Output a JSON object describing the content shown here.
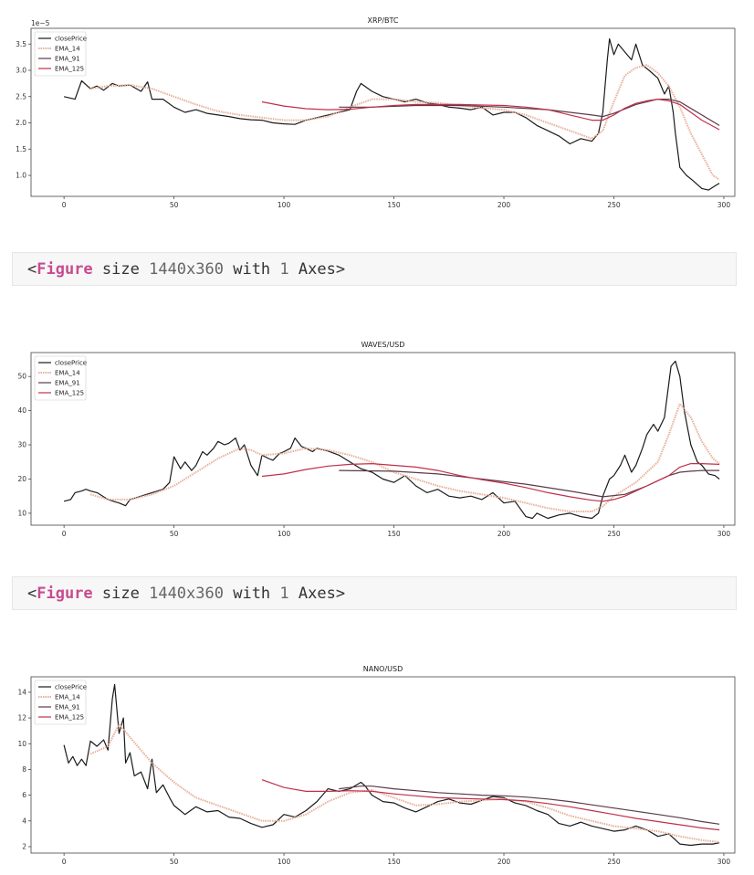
{
  "outputs": [
    {
      "prefix": "<",
      "keyword": "Figure",
      "middle": " size ",
      "size": "1440x360",
      "with": " with ",
      "count": "1",
      "suffix": " Axes>"
    },
    {
      "prefix": "<",
      "keyword": "Figure",
      "middle": " size ",
      "size": "1440x360",
      "with": " with ",
      "count": "1",
      "suffix": " Axes>"
    }
  ],
  "colors": {
    "closePrice": "#1a1a1a",
    "EMA_14": "#e8b09a",
    "EMA_91": "#5a3a48",
    "EMA_125": "#c0304a"
  },
  "chart_data": [
    {
      "type": "line",
      "title": "XRP/BTC",
      "offset_text": "1e−5",
      "xlim": [
        -15,
        305
      ],
      "ylim": [
        0.6,
        3.8
      ],
      "xticks": [
        0,
        50,
        100,
        150,
        200,
        250,
        300
      ],
      "yticks": [
        1.0,
        1.5,
        2.0,
        2.5,
        3.0,
        3.5
      ],
      "ytick_labels": [
        "1.0",
        "1.5",
        "2.0",
        "2.5",
        "3.0",
        "3.5"
      ],
      "legend": "top-left",
      "series": [
        {
          "name": "closePrice",
          "x": [
            0,
            5,
            8,
            12,
            15,
            18,
            22,
            25,
            30,
            35,
            38,
            40,
            45,
            50,
            55,
            60,
            65,
            70,
            75,
            80,
            85,
            90,
            95,
            100,
            105,
            110,
            115,
            120,
            125,
            130,
            133,
            135,
            140,
            145,
            150,
            155,
            160,
            165,
            170,
            175,
            180,
            185,
            190,
            195,
            200,
            205,
            210,
            215,
            220,
            225,
            230,
            235,
            240,
            243,
            245,
            247,
            248,
            250,
            252,
            255,
            258,
            260,
            263,
            266,
            270,
            273,
            275,
            277,
            278,
            280,
            283,
            286,
            290,
            293,
            296,
            298
          ],
          "y": [
            2.5,
            2.45,
            2.8,
            2.65,
            2.7,
            2.62,
            2.75,
            2.7,
            2.72,
            2.6,
            2.78,
            2.45,
            2.45,
            2.3,
            2.2,
            2.25,
            2.18,
            2.15,
            2.12,
            2.08,
            2.06,
            2.05,
            2.0,
            1.98,
            1.97,
            2.05,
            2.1,
            2.15,
            2.2,
            2.25,
            2.6,
            2.75,
            2.6,
            2.5,
            2.45,
            2.4,
            2.45,
            2.38,
            2.35,
            2.3,
            2.28,
            2.25,
            2.3,
            2.15,
            2.2,
            2.2,
            2.1,
            1.95,
            1.85,
            1.75,
            1.6,
            1.7,
            1.65,
            1.8,
            2.2,
            3.2,
            3.6,
            3.3,
            3.5,
            3.35,
            3.2,
            3.5,
            3.1,
            3.0,
            2.85,
            2.55,
            2.7,
            2.2,
            1.8,
            1.15,
            1.0,
            0.9,
            0.75,
            0.72,
            0.8,
            0.85
          ]
        },
        {
          "name": "EMA_14",
          "x": [
            12,
            20,
            30,
            40,
            50,
            60,
            70,
            80,
            90,
            100,
            110,
            120,
            130,
            140,
            150,
            160,
            170,
            180,
            190,
            200,
            210,
            220,
            230,
            240,
            245,
            250,
            255,
            260,
            265,
            270,
            275,
            280,
            285,
            290,
            295,
            298
          ],
          "y": [
            2.65,
            2.7,
            2.72,
            2.65,
            2.5,
            2.35,
            2.22,
            2.15,
            2.1,
            2.05,
            2.05,
            2.12,
            2.3,
            2.45,
            2.45,
            2.4,
            2.38,
            2.33,
            2.28,
            2.25,
            2.15,
            2.0,
            1.85,
            1.7,
            1.85,
            2.4,
            2.9,
            3.05,
            3.1,
            2.95,
            2.7,
            2.3,
            1.8,
            1.4,
            1.0,
            0.92
          ]
        },
        {
          "name": "EMA_91",
          "x": [
            125,
            140,
            160,
            180,
            200,
            220,
            240,
            245,
            250,
            260,
            270,
            275,
            280,
            290,
            298
          ],
          "y": [
            2.3,
            2.3,
            2.33,
            2.33,
            2.3,
            2.25,
            2.15,
            2.12,
            2.18,
            2.35,
            2.45,
            2.45,
            2.4,
            2.15,
            1.95
          ]
        },
        {
          "name": "EMA_125",
          "x": [
            90,
            100,
            110,
            120,
            130,
            140,
            150,
            160,
            170,
            180,
            190,
            200,
            210,
            220,
            230,
            240,
            245,
            250,
            255,
            260,
            265,
            270,
            275,
            280,
            285,
            290,
            298
          ],
          "y": [
            2.4,
            2.32,
            2.27,
            2.25,
            2.26,
            2.3,
            2.33,
            2.35,
            2.35,
            2.35,
            2.34,
            2.33,
            2.3,
            2.25,
            2.15,
            2.05,
            2.05,
            2.15,
            2.28,
            2.37,
            2.42,
            2.45,
            2.42,
            2.35,
            2.2,
            2.05,
            1.87
          ]
        }
      ]
    },
    {
      "type": "line",
      "title": "WAVES/USD",
      "offset_text": "",
      "xlim": [
        -15,
        305
      ],
      "ylim": [
        6.5,
        57
      ],
      "xticks": [
        0,
        50,
        100,
        150,
        200,
        250,
        300
      ],
      "yticks": [
        10,
        20,
        30,
        40,
        50
      ],
      "ytick_labels": [
        "10",
        "20",
        "30",
        "40",
        "50"
      ],
      "legend": "top-left",
      "series": [
        {
          "name": "closePrice",
          "x": [
            0,
            3,
            5,
            8,
            10,
            12,
            15,
            20,
            25,
            28,
            30,
            35,
            40,
            45,
            48,
            50,
            53,
            55,
            58,
            60,
            63,
            65,
            68,
            70,
            73,
            75,
            78,
            80,
            82,
            85,
            88,
            90,
            93,
            95,
            98,
            100,
            103,
            105,
            108,
            110,
            113,
            115,
            118,
            120,
            125,
            130,
            135,
            140,
            145,
            150,
            155,
            160,
            165,
            170,
            175,
            180,
            185,
            190,
            195,
            200,
            205,
            210,
            213,
            215,
            220,
            225,
            230,
            235,
            240,
            243,
            245,
            248,
            250,
            253,
            255,
            258,
            260,
            263,
            265,
            268,
            270,
            273,
            275,
            276,
            278,
            280,
            282,
            285,
            288,
            290,
            293,
            296,
            298
          ],
          "y": [
            13.5,
            14,
            16,
            16.5,
            17,
            16.5,
            16,
            14,
            13,
            12.2,
            14,
            15,
            16,
            17,
            19,
            26.5,
            23,
            25,
            22.5,
            24,
            28,
            27,
            29,
            31,
            30,
            30.5,
            32,
            28.5,
            30,
            24,
            21,
            27,
            26,
            25.5,
            27.5,
            28,
            29,
            32,
            29.5,
            29,
            28,
            29,
            28.5,
            28.2,
            27,
            25,
            23,
            22,
            20,
            19,
            21,
            18,
            16,
            17,
            15,
            14.5,
            15,
            14,
            16,
            13,
            13.5,
            9,
            8.5,
            10,
            8.5,
            9.5,
            10,
            9,
            8.5,
            10,
            15,
            20,
            21,
            24,
            27,
            22,
            24,
            29,
            33,
            36,
            34,
            38,
            48,
            53,
            54.5,
            50,
            40,
            30,
            25,
            24,
            21.5,
            21,
            20
          ]
        },
        {
          "name": "EMA_14",
          "x": [
            12,
            20,
            30,
            40,
            50,
            60,
            70,
            80,
            85,
            90,
            100,
            110,
            120,
            130,
            140,
            150,
            160,
            170,
            180,
            190,
            200,
            210,
            220,
            230,
            240,
            245,
            250,
            260,
            265,
            270,
            275,
            280,
            285,
            290,
            295,
            298
          ],
          "y": [
            15.5,
            14,
            14,
            15.5,
            18,
            22,
            26,
            29,
            28.5,
            27,
            27.5,
            29,
            28.5,
            27,
            25,
            22,
            20,
            18,
            16.5,
            15.5,
            14.5,
            13,
            11.5,
            10.5,
            10.5,
            12,
            15,
            19,
            22,
            25,
            33,
            42,
            38,
            31,
            26,
            24.5
          ]
        },
        {
          "name": "EMA_91",
          "x": [
            125,
            150,
            170,
            190,
            210,
            230,
            245,
            255,
            265,
            275,
            280,
            285,
            290,
            298
          ],
          "y": [
            22.5,
            22.3,
            21.5,
            20,
            18.5,
            16.5,
            14.8,
            15.5,
            18,
            21,
            22,
            22.3,
            22.5,
            22.5
          ]
        },
        {
          "name": "EMA_125",
          "x": [
            90,
            100,
            110,
            120,
            130,
            140,
            150,
            160,
            170,
            180,
            190,
            200,
            210,
            220,
            230,
            240,
            245,
            250,
            255,
            260,
            265,
            270,
            275,
            280,
            285,
            290,
            298
          ],
          "y": [
            20.8,
            21.5,
            22.8,
            23.8,
            24.3,
            24.5,
            24,
            23.5,
            22.5,
            21,
            19.8,
            18.8,
            17.5,
            16,
            14.8,
            13.8,
            13.5,
            14,
            15,
            16.5,
            18,
            19.5,
            21,
            23.5,
            24.5,
            24.5,
            24.3
          ]
        }
      ]
    },
    {
      "type": "line",
      "title": "NANO/USD",
      "offset_text": "",
      "xlim": [
        -15,
        305
      ],
      "ylim": [
        1.5,
        15.2
      ],
      "xticks": [
        0,
        50,
        100,
        150,
        200,
        250,
        300
      ],
      "yticks": [
        2,
        4,
        6,
        8,
        10,
        12,
        14
      ],
      "ytick_labels": [
        "2",
        "4",
        "6",
        "8",
        "10",
        "12",
        "14"
      ],
      "legend": "top-left",
      "series": [
        {
          "name": "closePrice",
          "x": [
            0,
            2,
            4,
            6,
            8,
            10,
            12,
            15,
            18,
            20,
            22,
            23,
            25,
            27,
            28,
            30,
            32,
            35,
            38,
            40,
            42,
            45,
            48,
            50,
            55,
            60,
            65,
            70,
            75,
            80,
            85,
            90,
            95,
            100,
            105,
            110,
            115,
            120,
            125,
            130,
            135,
            137,
            140,
            145,
            150,
            155,
            160,
            165,
            170,
            175,
            180,
            185,
            190,
            195,
            200,
            205,
            210,
            215,
            220,
            225,
            230,
            235,
            240,
            245,
            250,
            255,
            260,
            265,
            270,
            275,
            280,
            285,
            290,
            295,
            298
          ],
          "y": [
            9.9,
            8.5,
            9,
            8.3,
            8.8,
            8.3,
            10.2,
            9.8,
            10.3,
            9.5,
            13.5,
            14.6,
            10.8,
            12,
            8.5,
            9.3,
            7.5,
            7.8,
            6.5,
            8.8,
            6.2,
            6.8,
            5.8,
            5.2,
            4.5,
            5.1,
            4.7,
            4.8,
            4.3,
            4.2,
            3.8,
            3.5,
            3.7,
            4.5,
            4.3,
            4.8,
            5.5,
            6.5,
            6.3,
            6.5,
            7.0,
            6.7,
            6.0,
            5.5,
            5.4,
            5.0,
            4.7,
            5.1,
            5.5,
            5.7,
            5.4,
            5.3,
            5.6,
            5.9,
            5.8,
            5.4,
            5.2,
            4.8,
            4.5,
            3.8,
            3.6,
            3.9,
            3.6,
            3.4,
            3.2,
            3.3,
            3.6,
            3.3,
            2.8,
            3.0,
            2.2,
            2.1,
            2.2,
            2.2,
            2.3
          ]
        },
        {
          "name": "EMA_14",
          "x": [
            12,
            20,
            25,
            30,
            40,
            50,
            60,
            70,
            80,
            90,
            100,
            110,
            120,
            130,
            140,
            150,
            160,
            170,
            180,
            190,
            200,
            210,
            220,
            230,
            240,
            250,
            260,
            270,
            280,
            290,
            298
          ],
          "y": [
            9.2,
            9.8,
            11.5,
            10.5,
            8.5,
            7,
            5.8,
            5.2,
            4.6,
            4.0,
            4.0,
            4.5,
            5.5,
            6.2,
            6.4,
            5.8,
            5.2,
            5.3,
            5.5,
            5.6,
            5.7,
            5.5,
            5.0,
            4.4,
            4.0,
            3.6,
            3.4,
            3.2,
            2.8,
            2.5,
            2.35
          ]
        },
        {
          "name": "EMA_91",
          "x": [
            125,
            135,
            140,
            150,
            160,
            170,
            180,
            190,
            200,
            210,
            220,
            230,
            240,
            250,
            260,
            270,
            280,
            290,
            298
          ],
          "y": [
            6.5,
            6.7,
            6.7,
            6.5,
            6.35,
            6.2,
            6.1,
            6.0,
            5.95,
            5.85,
            5.7,
            5.5,
            5.25,
            5.0,
            4.75,
            4.5,
            4.25,
            3.95,
            3.75
          ]
        },
        {
          "name": "EMA_125",
          "x": [
            90,
            100,
            110,
            120,
            130,
            140,
            150,
            160,
            170,
            180,
            190,
            200,
            210,
            220,
            230,
            240,
            250,
            260,
            270,
            280,
            290,
            298
          ],
          "y": [
            7.2,
            6.6,
            6.3,
            6.3,
            6.35,
            6.3,
            6.1,
            5.95,
            5.8,
            5.75,
            5.7,
            5.65,
            5.55,
            5.35,
            5.1,
            4.8,
            4.5,
            4.2,
            3.95,
            3.7,
            3.45,
            3.3
          ]
        }
      ]
    }
  ]
}
